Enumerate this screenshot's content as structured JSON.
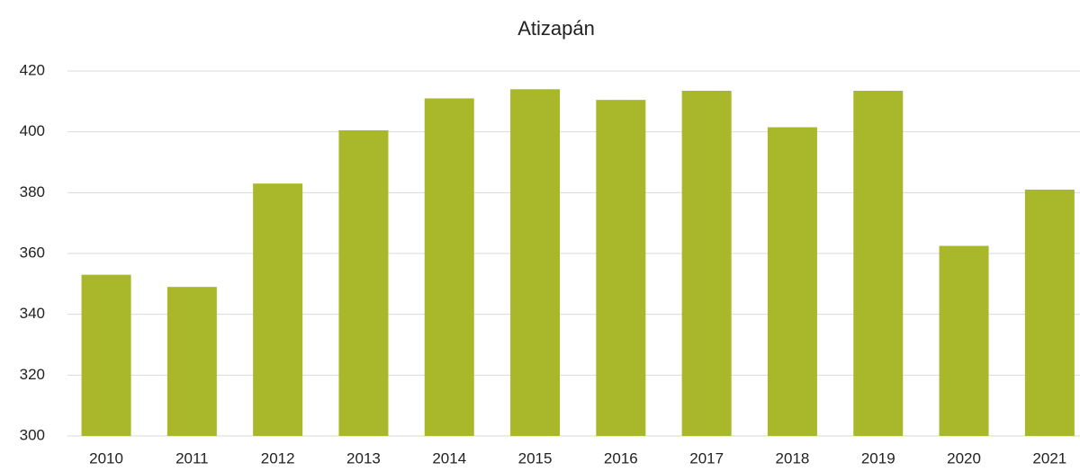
{
  "chart_data": {
    "type": "bar",
    "title": "Atizapán",
    "categories": [
      "2010",
      "2011",
      "2012",
      "2013",
      "2014",
      "2015",
      "2016",
      "2017",
      "2018",
      "2019",
      "2020",
      "2021"
    ],
    "values": [
      353,
      349,
      383,
      400.5,
      411,
      414,
      410.5,
      413.5,
      401.5,
      413.5,
      362.5,
      381
    ],
    "color": "#a8b82a",
    "ylim": [
      300,
      420
    ],
    "yticks": [
      300,
      320,
      340,
      360,
      380,
      400,
      420
    ],
    "grid": true
  }
}
